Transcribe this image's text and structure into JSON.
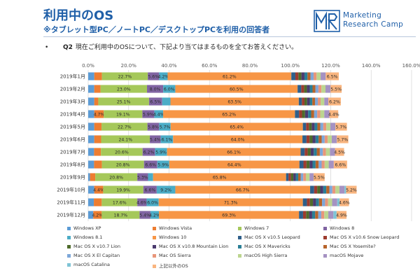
{
  "header": {
    "title": "利用中のOS",
    "subtitle": "※タブレット型PC／ノートPC／デスクトップPCを利用の回答者"
  },
  "logo": {
    "mark": "MR",
    "line1": "Marketing",
    "line2": "Research Camp"
  },
  "question": {
    "bullet": "•",
    "id": "Q2",
    "text": "現在ご利用中のOSについて、下記より当てはまるものを全てお答えください。"
  },
  "colors": {
    "title": "#1f5fa8",
    "grid": "#d9d9d9"
  },
  "chart_data": {
    "type": "bar",
    "orientation": "horizontal",
    "stacked": true,
    "x_ticks": [
      "0.0%",
      "20.0%",
      "40.0%",
      "60.0%",
      "80.0%",
      "100.0%",
      "120.0%",
      "140.0%",
      "160.0%"
    ],
    "xlim": [
      0,
      160
    ],
    "grid": true,
    "legend_position": "bottom",
    "categories": [
      "2019年1月",
      "2019年2月",
      "2019年3月",
      "2019年4月",
      "2019年5月",
      "2019年6月",
      "2019年7月",
      "2019年8月",
      "2019年9月",
      "2019年10月",
      "2019年11月",
      "2019年12月"
    ],
    "series": [
      {
        "name": "Windows XP",
        "color": "#5b9bd5",
        "values": [
          3.0,
          3.0,
          3.0,
          3.0,
          3.0,
          3.0,
          2.9,
          2.9,
          0.9,
          3.0,
          2.8,
          2.5
        ]
      },
      {
        "name": "Windows Vista",
        "color": "#ed7d31",
        "values": [
          3.8,
          3.1,
          2.0,
          4.7,
          3.6,
          3.4,
          3.4,
          3.9,
          2.6,
          4.4,
          3.9,
          4.2
        ]
      },
      {
        "name": "Windows 7",
        "color": "#a5c85a",
        "values": [
          22.7,
          23.0,
          25.1,
          19.1,
          22.7,
          24.1,
          20.6,
          20.8,
          20.8,
          19.9,
          17.6,
          18.7
        ]
      },
      {
        "name": "Windows 8",
        "color": "#8064a2",
        "values": [
          5.6,
          8.0,
          6.5,
          5.9,
          5.8,
          5.4,
          6.2,
          6.6,
          5.3,
          6.6,
          4.6,
          5.4
        ]
      },
      {
        "name": "Windows 8.1",
        "color": "#4bacc6",
        "values": [
          4.2,
          6.0,
          4.1,
          4.4,
          5.7,
          6.1,
          5.9,
          5.9,
          2.5,
          9.2,
          6.0,
          4.2
        ]
      },
      {
        "name": "Windows 10",
        "color": "#f79646",
        "values": [
          61.2,
          60.5,
          63.5,
          65.2,
          65.4,
          64.0,
          66.1,
          64.4,
          65.8,
          66.7,
          71.3,
          69.3
        ]
      },
      {
        "name": "Mac OS X v10.5 Leopard",
        "color": "#2e5f8a",
        "values": [
          2.0,
          1.8,
          1.5,
          2.0,
          1.6,
          2.0,
          2.0,
          2.0,
          1.2,
          2.0,
          2.0,
          2.0
        ]
      },
      {
        "name": "Mac OS X v10.6 Snow Leopard",
        "color": "#9e3b2e",
        "values": [
          1.5,
          1.4,
          1.3,
          1.5,
          1.4,
          1.5,
          1.5,
          1.5,
          1.2,
          1.5,
          1.5,
          1.5
        ]
      },
      {
        "name": "Mac OS X v10.7 Lion",
        "color": "#4e6b2a",
        "values": [
          1.5,
          1.4,
          1.3,
          1.5,
          1.4,
          1.5,
          1.5,
          1.5,
          1.2,
          1.5,
          1.5,
          1.5
        ]
      },
      {
        "name": "Mac OS X v10.8 Mountain Lion",
        "color": "#4b3a6e",
        "values": [
          1.5,
          1.4,
          1.3,
          1.5,
          1.4,
          1.5,
          1.5,
          1.5,
          1.2,
          1.5,
          1.5,
          1.5
        ]
      },
      {
        "name": "Mac OS X Mavericks",
        "color": "#2a7f96",
        "values": [
          1.5,
          1.4,
          1.3,
          1.5,
          1.4,
          1.5,
          1.5,
          1.5,
          1.2,
          1.5,
          1.5,
          1.5
        ]
      },
      {
        "name": "Mac OS X Yosemite?",
        "color": "#b7642a",
        "values": [
          1.5,
          1.4,
          1.3,
          1.5,
          1.4,
          1.5,
          1.5,
          1.5,
          1.2,
          1.5,
          1.5,
          1.5
        ]
      },
      {
        "name": "Mac OS X El Capitan",
        "color": "#7da7d9",
        "values": [
          1.5,
          1.5,
          1.4,
          1.5,
          1.5,
          1.5,
          1.5,
          1.5,
          1.3,
          1.5,
          1.5,
          1.5
        ]
      },
      {
        "name": "Mac OS Sierra",
        "color": "#e8967a",
        "values": [
          1.5,
          1.5,
          1.4,
          1.5,
          1.5,
          1.5,
          1.5,
          1.5,
          1.3,
          1.5,
          1.5,
          1.5
        ]
      },
      {
        "name": "macOS High Sierra",
        "color": "#bcd58f",
        "values": [
          2.0,
          2.0,
          1.8,
          2.0,
          2.0,
          2.0,
          2.0,
          2.0,
          1.8,
          2.0,
          2.0,
          2.0
        ]
      },
      {
        "name": "macOS Mojave",
        "color": "#a592c2",
        "values": [
          2.5,
          2.5,
          2.0,
          2.5,
          2.5,
          2.5,
          2.5,
          2.5,
          2.0,
          2.5,
          2.5,
          2.5
        ]
      },
      {
        "name": "macOS Catalina",
        "color": "#7fc4d6",
        "values": [
          0,
          0,
          0,
          0,
          0,
          0,
          0,
          0,
          0,
          0.8,
          1.2,
          1.6
        ]
      },
      {
        "name": "上記以外のOS",
        "color": "#f9b57f",
        "values": [
          6.5,
          5.5,
          6.2,
          4.4,
          5.7,
          5.7,
          4.5,
          6.6,
          5.5,
          5.2,
          4.6,
          4.9
        ]
      }
    ]
  }
}
